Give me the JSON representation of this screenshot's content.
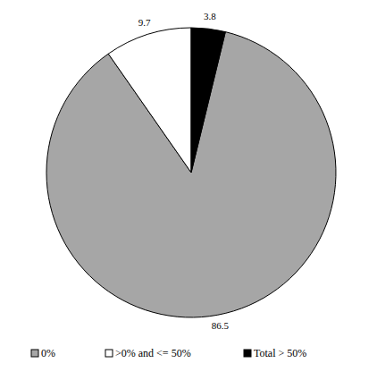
{
  "chart_data": {
    "type": "pie",
    "categories": [
      "0%",
      ">0% and <= 50%",
      "Total > 50%"
    ],
    "values": [
      86.5,
      9.7,
      3.8
    ],
    "colors": [
      "#a6a6a6",
      "#ffffff",
      "#000000"
    ],
    "data_labels": true,
    "legend": "bottom"
  }
}
